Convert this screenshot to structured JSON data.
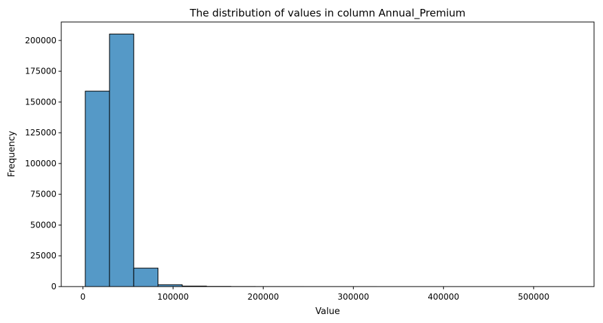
{
  "chart_data": {
    "type": "bar",
    "title": "The distribution of values in column Annual_Premium",
    "xlabel": "Value",
    "ylabel": "Frequency",
    "bin_edges": [
      2630,
      29500,
      56400,
      83300,
      110200,
      137100,
      164000,
      190900,
      217800,
      244700,
      271600,
      298500,
      325400,
      352300,
      379200,
      406100,
      433000,
      459800,
      486700,
      513600,
      540165
    ],
    "values": [
      158800,
      205200,
      15000,
      1500,
      400,
      150,
      60,
      30,
      15,
      8,
      5,
      3,
      2,
      2,
      1,
      1,
      1,
      1,
      1,
      1
    ],
    "xlim": [
      -24000,
      567000
    ],
    "ylim": [
      0,
      215000
    ],
    "xticks": [
      0,
      100000,
      200000,
      300000,
      400000,
      500000
    ],
    "yticks": [
      0,
      25000,
      50000,
      75000,
      100000,
      125000,
      150000,
      175000,
      200000
    ],
    "bar_color": "#5599c7",
    "edge_color": "#000000",
    "grid": false,
    "legend": false
  }
}
